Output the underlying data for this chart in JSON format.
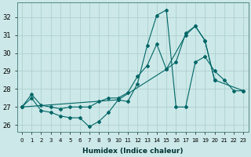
{
  "xlabel": "Humidex (Indice chaleur)",
  "bg_color": "#cce8e8",
  "grid_color": "#aacccc",
  "line_color": "#006666",
  "xlim": [
    -0.5,
    23.5
  ],
  "ylim": [
    25.6,
    32.8
  ],
  "xticks": [
    0,
    1,
    2,
    3,
    4,
    5,
    6,
    7,
    8,
    9,
    10,
    11,
    12,
    13,
    14,
    15,
    16,
    17,
    18,
    19,
    20,
    21,
    22,
    23
  ],
  "yticks": [
    26,
    27,
    28,
    29,
    30,
    31,
    32
  ],
  "series": [
    {
      "x": [
        0,
        1,
        2,
        3,
        4,
        5,
        6,
        7,
        8,
        9,
        10,
        11,
        12,
        13,
        14,
        15,
        16,
        17,
        18,
        19,
        20,
        21,
        22,
        23
      ],
      "y": [
        27.0,
        27.5,
        26.8,
        26.7,
        26.5,
        26.4,
        26.4,
        25.9,
        26.2,
        26.7,
        27.4,
        27.3,
        28.3,
        30.4,
        32.1,
        32.4,
        27.0,
        27.0,
        29.5,
        29.8,
        29.0,
        28.5,
        27.9,
        27.9
      ]
    },
    {
      "x": [
        0,
        10,
        15,
        17,
        18,
        19,
        20,
        23
      ],
      "y": [
        27.0,
        27.4,
        29.1,
        31.0,
        31.5,
        30.7,
        28.5,
        27.9
      ]
    },
    {
      "x": [
        0,
        1,
        2,
        3,
        4,
        5,
        6,
        7,
        8,
        9,
        10,
        11,
        12,
        13,
        14,
        15,
        16,
        17,
        18,
        19,
        20
      ],
      "y": [
        27.0,
        27.7,
        27.1,
        27.0,
        26.9,
        27.0,
        27.0,
        27.0,
        27.3,
        27.5,
        27.5,
        27.8,
        28.7,
        29.3,
        30.5,
        29.1,
        29.5,
        31.1,
        31.5,
        30.7,
        28.5
      ]
    }
  ]
}
